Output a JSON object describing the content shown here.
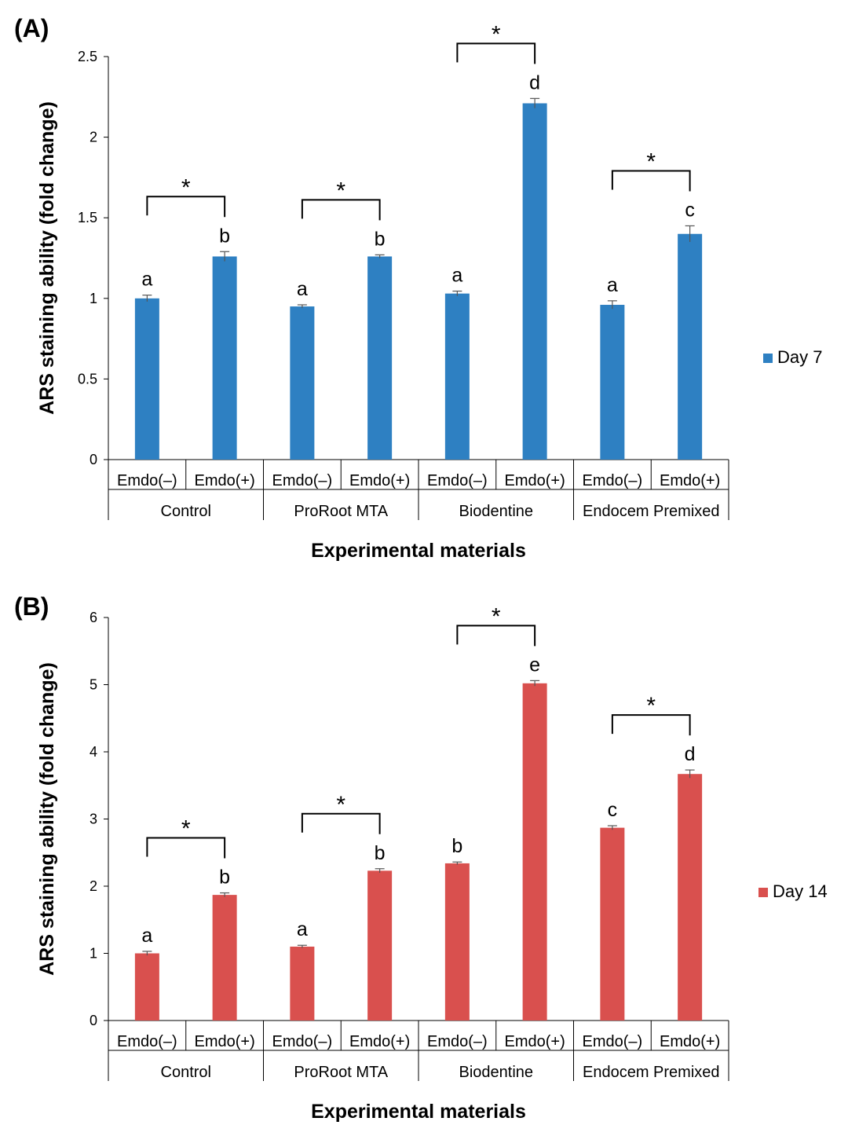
{
  "chart_data": [
    {
      "type": "bar",
      "panel_label": "(A)",
      "title": "",
      "xlabel": "Experimental materials",
      "ylabel": "ARS staining ability (fold change)",
      "ylim": [
        0,
        2.5
      ],
      "yticks": [
        0,
        0.5,
        1,
        1.5,
        2,
        2.5
      ],
      "ytick_labels": [
        "0",
        "0.5",
        "1",
        "1.5",
        "2",
        "2.5"
      ],
      "groups": [
        "Control",
        "ProRoot MTA",
        "Biodentine",
        "Endocem Premixed"
      ],
      "categories": [
        "Emdo(–)",
        "Emdo(+)",
        "Emdo(–)",
        "Emdo(+)",
        "Emdo(–)",
        "Emdo(+)",
        "Emdo(–)",
        "Emdo(+)"
      ],
      "series": [
        {
          "name": "Day 7",
          "color": "#2E80C2",
          "values": [
            1.0,
            1.26,
            0.95,
            1.26,
            1.03,
            2.21,
            0.96,
            1.4
          ],
          "errors": [
            0.02,
            0.03,
            0.01,
            0.01,
            0.015,
            0.03,
            0.025,
            0.05
          ]
        }
      ],
      "letters": [
        "a",
        "b",
        "a",
        "b",
        "a",
        "d",
        "a",
        "c"
      ],
      "significance": [
        "*",
        "*",
        "*",
        "*"
      ],
      "legend_position": "right"
    },
    {
      "type": "bar",
      "panel_label": "(B)",
      "title": "",
      "xlabel": "Experimental materials",
      "ylabel": "ARS staining ability (fold change)",
      "ylim": [
        0,
        6
      ],
      "yticks": [
        0,
        1,
        2,
        3,
        4,
        5,
        6
      ],
      "ytick_labels": [
        "0",
        "1",
        "2",
        "3",
        "4",
        "5",
        "6"
      ],
      "groups": [
        "Control",
        "ProRoot MTA",
        "Biodentine",
        "Endocem Premixed"
      ],
      "categories": [
        "Emdo(–)",
        "Emdo(+)",
        "Emdo(–)",
        "Emdo(+)",
        "Emdo(–)",
        "Emdo(+)",
        "Emdo(–)",
        "Emdo(+)"
      ],
      "series": [
        {
          "name": "Day 14",
          "color": "#D9504E",
          "values": [
            1.0,
            1.87,
            1.1,
            2.23,
            2.34,
            5.02,
            2.87,
            3.67
          ],
          "errors": [
            0.03,
            0.03,
            0.02,
            0.03,
            0.02,
            0.04,
            0.03,
            0.06
          ]
        }
      ],
      "letters": [
        "a",
        "b",
        "a",
        "b",
        "b",
        "e",
        "c",
        "d"
      ],
      "significance": [
        "*",
        "*",
        "*",
        "*"
      ],
      "legend_position": "right"
    }
  ]
}
